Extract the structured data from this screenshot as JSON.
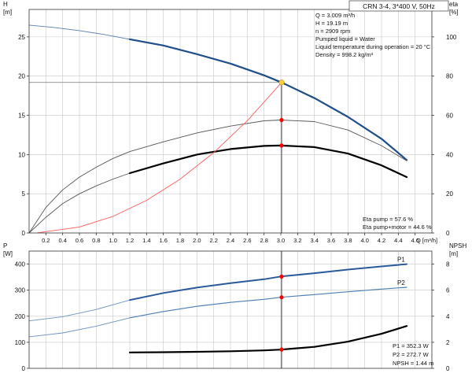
{
  "pump_label": "CRN 3-4, 3*400 V, 50Hz",
  "duty_info": [
    "Q = 3.009 m³/h",
    "H = 19.19 m",
    "n = 2909 rpm",
    "Pumped liquid = Water",
    "Liquid temperature during operation = 20 °C",
    "Density = 998.2 kg/m³"
  ],
  "eta_info": [
    "Eta pump = 57.6 %",
    "Eta pump+motor = 44.6 %"
  ],
  "power_info": [
    "P1 = 352.3 W",
    "P2 = 272.7 W",
    "NPSH = 1.44 m"
  ],
  "colors": {
    "head": "#1f4e89",
    "eta": "#000000",
    "eta_thin": "#555555",
    "system": "#ff5a5a",
    "p1": "#2a5a9a",
    "p2": "#4e7fb3",
    "npsh": "#000000",
    "duty_marker": "#ff0000",
    "duty_point": "#ffd23f",
    "grid": "#c8c8c8"
  },
  "chart_data": [
    {
      "type": "line",
      "name": "head-efficiency",
      "xlabel": "Q [m³/h]",
      "ylabel": "H\n[m]",
      "y2label": "eta\n[%]",
      "xlim": [
        0,
        4.8
      ],
      "ylim": [
        0,
        28.5
      ],
      "y2lim": [
        0,
        114
      ],
      "x_ticks": [
        0.2,
        0.4,
        0.6,
        0.8,
        1.0,
        1.2,
        1.4,
        1.6,
        1.8,
        2.0,
        2.2,
        2.4,
        2.6,
        2.8,
        3.0,
        3.2,
        3.4,
        3.6,
        3.8,
        4.0,
        4.2,
        4.4,
        4.6
      ],
      "x_tick_labels": [
        "0.2",
        "0.4",
        "0.6",
        "0.8",
        "1.0",
        "1.2",
        "1.4",
        "1.6",
        "1.8",
        "2.0",
        "2.2",
        "2.4",
        "2.6",
        "2.8",
        "3.0",
        "3.2",
        "3.4",
        "3.6",
        "3.8",
        "4.0",
        "4.2",
        "4.4",
        "4.6"
      ],
      "y_ticks": [
        0,
        5,
        10,
        15,
        20,
        25
      ],
      "y_tick_labels": [
        "0",
        "5",
        "10",
        "15",
        "20",
        "25"
      ],
      "y2_ticks": [
        0,
        20,
        40,
        60,
        80,
        100
      ],
      "y2_tick_labels": [
        "0",
        "20",
        "40",
        "60",
        "80",
        "100"
      ],
      "grid": true,
      "series": [
        {
          "axis": "y",
          "style": "thin",
          "x": [
            0,
            0.3,
            0.6,
            0.9,
            1.2
          ],
          "values": [
            26.5,
            26.2,
            25.8,
            25.3,
            24.7
          ]
        },
        {
          "axis": "y",
          "style": "thick",
          "x": [
            1.2,
            1.6,
            2.0,
            2.4,
            2.8,
            3.009,
            3.4,
            3.8,
            4.2,
            4.5
          ],
          "values": [
            24.7,
            23.9,
            22.8,
            21.6,
            20.1,
            19.19,
            17.2,
            14.8,
            12.0,
            9.3
          ]
        },
        {
          "axis": "y2",
          "style": "thin",
          "x": [
            0,
            0.2,
            0.4,
            0.6,
            0.8,
            1.0,
            1.2
          ],
          "values": [
            0,
            13,
            22,
            28.5,
            33.5,
            38,
            41.5
          ]
        },
        {
          "axis": "y2",
          "style": "thin",
          "x": [
            1.2,
            1.6,
            2.0,
            2.4,
            2.8,
            3.0,
            3.4,
            3.8,
            4.2,
            4.5
          ],
          "values": [
            41.5,
            46.5,
            51,
            54.5,
            57.2,
            57.6,
            56.8,
            52.5,
            44.5,
            36.8
          ]
        },
        {
          "axis": "y2",
          "style": "thin",
          "x": [
            0,
            0.2,
            0.4,
            0.6,
            0.8,
            1.0,
            1.2
          ],
          "values": [
            0,
            8,
            15,
            20,
            24,
            27.5,
            30.5
          ]
        },
        {
          "axis": "y2",
          "style": "thick",
          "x": [
            1.2,
            1.6,
            2.0,
            2.4,
            2.8,
            3.0,
            3.4,
            3.8,
            4.2,
            4.5
          ],
          "values": [
            30.5,
            35.5,
            40,
            42.8,
            44.4,
            44.6,
            43.8,
            40.5,
            34.5,
            28.5
          ]
        },
        {
          "axis": "y",
          "style": "system",
          "x": [
            0.1,
            0.6,
            1.0,
            1.4,
            1.8,
            2.2,
            2.6,
            3.009
          ],
          "values": [
            0.02,
            0.76,
            2.12,
            4.15,
            6.86,
            10.25,
            14.31,
            19.19
          ]
        }
      ],
      "markers": [
        {
          "x": 3.009,
          "axis": "y",
          "value": 19.19,
          "kind": "duty"
        },
        {
          "x": 3.009,
          "axis": "y2",
          "value": 57.6,
          "kind": "point"
        },
        {
          "x": 3.009,
          "axis": "y2",
          "value": 44.6,
          "kind": "point"
        }
      ],
      "guide_lines": {
        "duty_x": 3.009,
        "duty_h": 19.19
      }
    },
    {
      "type": "line",
      "name": "power-npsh",
      "ylabel": "P\n[W]",
      "y2label": "NPSH\n[m]",
      "xlim": [
        0,
        4.8
      ],
      "ylim": [
        0,
        450
      ],
      "y2lim": [
        0,
        9
      ],
      "y_ticks": [
        0,
        100,
        200,
        300,
        400
      ],
      "y_tick_labels": [
        "0",
        "100",
        "200",
        "300",
        "400"
      ],
      "y2_ticks": [
        0,
        2,
        4,
        6,
        8
      ],
      "y2_tick_labels": [
        "0",
        "2",
        "4",
        "6",
        "8"
      ],
      "grid": true,
      "series": [
        {
          "axis": "y",
          "style": "thin",
          "x": [
            0,
            0.4,
            0.8,
            1.2
          ],
          "values": [
            182,
            198,
            226,
            262
          ]
        },
        {
          "axis": "y",
          "style": "thick-p1",
          "name": "P1",
          "x": [
            1.2,
            1.6,
            2.0,
            2.4,
            2.8,
            3.0,
            3.4,
            3.8,
            4.2,
            4.5
          ],
          "values": [
            262,
            289,
            310,
            327,
            342,
            352.3,
            365,
            379,
            391,
            400
          ]
        },
        {
          "axis": "y",
          "style": "thin",
          "x": [
            0,
            0.4,
            0.8,
            1.2
          ],
          "values": [
            121,
            136,
            162,
            194
          ]
        },
        {
          "axis": "y",
          "style": "p2",
          "name": "P2",
          "x": [
            1.2,
            1.6,
            2.0,
            2.4,
            2.8,
            3.0,
            3.4,
            3.8,
            4.2,
            4.5
          ],
          "values": [
            194,
            218,
            238,
            253,
            265,
            272.7,
            283,
            294,
            304,
            311
          ]
        },
        {
          "axis": "y2",
          "style": "thick",
          "x": [
            1.2,
            1.6,
            2.0,
            2.4,
            2.8,
            3.0,
            3.4,
            3.8,
            4.2,
            4.5
          ],
          "values": [
            1.22,
            1.24,
            1.27,
            1.31,
            1.38,
            1.44,
            1.65,
            2.05,
            2.65,
            3.25
          ]
        }
      ],
      "markers": [
        {
          "x": 3.009,
          "axis": "y",
          "value": 352.3,
          "kind": "point"
        },
        {
          "x": 3.009,
          "axis": "y",
          "value": 272.7,
          "kind": "point"
        },
        {
          "x": 3.009,
          "axis": "y2",
          "value": 1.44,
          "kind": "point"
        }
      ]
    }
  ]
}
